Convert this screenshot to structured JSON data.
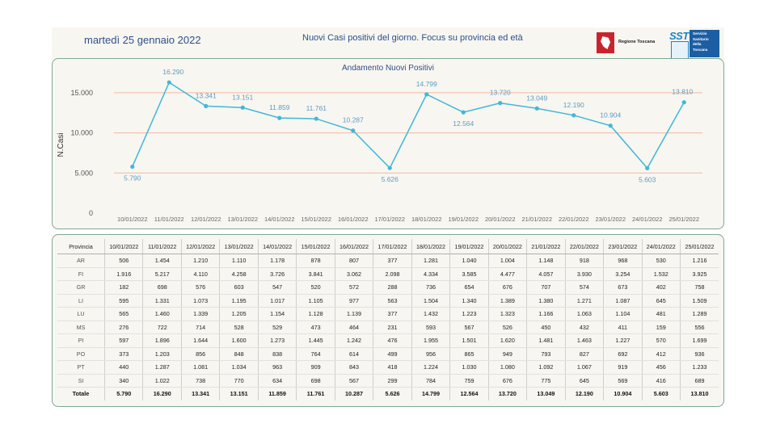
{
  "header": {
    "date": "martedì 25 gennaio 2022",
    "subtitle": "Nuovi Casi positivi del giorno. Focus su provincia ed età",
    "logo_rt_text": "Regione Toscana",
    "logo_sst_word": "SST",
    "logo_sst_lines": [
      "Servizio",
      "Sanitario",
      "della",
      "Toscana"
    ]
  },
  "colors": {
    "line": "#3fb8d9",
    "grid": "#f0b9a2",
    "label": "#5b9cc4",
    "text": "#2d4f8c"
  },
  "chart_data": {
    "type": "line",
    "title": "Andamento Nuovi Positivi",
    "xlabel": "",
    "ylabel": "N.Casi",
    "ylim": [
      0,
      17000
    ],
    "yticks": [
      "0",
      "5.000",
      "10.000",
      "15.000"
    ],
    "ytick_values": [
      0,
      5000,
      10000,
      15000
    ],
    "grid": true,
    "categories": [
      "10/01/2022",
      "11/01/2022",
      "12/01/2022",
      "13/01/2022",
      "14/01/2022",
      "15/01/2022",
      "16/01/2022",
      "17/01/2022",
      "18/01/2022",
      "19/01/2022",
      "20/01/2022",
      "21/01/2022",
      "22/01/2022",
      "23/01/2022",
      "24/01/2022",
      "25/01/2022"
    ],
    "values": [
      5790,
      16290,
      13341,
      13151,
      11859,
      11761,
      10287,
      5626,
      14799,
      12564,
      13720,
      13049,
      12190,
      10904,
      5603,
      13810
    ],
    "value_labels": [
      "5.790",
      "16.290",
      "13.341",
      "13.151",
      "11.859",
      "11.761",
      "10.287",
      "5.626",
      "14.799",
      "12.564",
      "13.720",
      "13.049",
      "12.190",
      "10.904",
      "5.603",
      "13.810"
    ]
  },
  "table": {
    "corner": "Provincia",
    "rows": [
      {
        "prov": "AR",
        "cells": [
          "506",
          "1.454",
          "1.210",
          "1.110",
          "1.178",
          "878",
          "807",
          "377",
          "1.281",
          "1.040",
          "1.004",
          "1.148",
          "918",
          "968",
          "530",
          "1.216"
        ]
      },
      {
        "prov": "FI",
        "cells": [
          "1.916",
          "5.217",
          "4.110",
          "4.258",
          "3.726",
          "3.841",
          "3.062",
          "2.098",
          "4.334",
          "3.585",
          "4.477",
          "4.057",
          "3.930",
          "3.254",
          "1.532",
          "3.925"
        ]
      },
      {
        "prov": "GR",
        "cells": [
          "182",
          "698",
          "576",
          "603",
          "547",
          "520",
          "572",
          "288",
          "736",
          "654",
          "676",
          "707",
          "574",
          "673",
          "402",
          "758"
        ]
      },
      {
        "prov": "LI",
        "cells": [
          "595",
          "1.331",
          "1.073",
          "1.195",
          "1.017",
          "1.105",
          "977",
          "563",
          "1.504",
          "1.340",
          "1.389",
          "1.380",
          "1.271",
          "1.087",
          "645",
          "1.509"
        ]
      },
      {
        "prov": "LU",
        "cells": [
          "565",
          "1.460",
          "1.339",
          "1.205",
          "1.154",
          "1.128",
          "1.139",
          "377",
          "1.432",
          "1.223",
          "1.323",
          "1.166",
          "1.063",
          "1.104",
          "481",
          "1.289"
        ]
      },
      {
        "prov": "MS",
        "cells": [
          "276",
          "722",
          "714",
          "528",
          "529",
          "473",
          "464",
          "231",
          "593",
          "567",
          "526",
          "450",
          "432",
          "411",
          "159",
          "556"
        ]
      },
      {
        "prov": "PI",
        "cells": [
          "597",
          "1.896",
          "1.644",
          "1.600",
          "1.273",
          "1.445",
          "1.242",
          "476",
          "1.955",
          "1.501",
          "1.620",
          "1.481",
          "1.463",
          "1.227",
          "570",
          "1.699"
        ]
      },
      {
        "prov": "PO",
        "cells": [
          "373",
          "1.203",
          "856",
          "848",
          "838",
          "764",
          "614",
          "499",
          "956",
          "865",
          "949",
          "793",
          "827",
          "692",
          "412",
          "936"
        ]
      },
      {
        "prov": "PT",
        "cells": [
          "440",
          "1.287",
          "1.081",
          "1.034",
          "963",
          "909",
          "843",
          "418",
          "1.224",
          "1.030",
          "1.080",
          "1.092",
          "1.067",
          "919",
          "456",
          "1.233"
        ]
      },
      {
        "prov": "SI",
        "cells": [
          "340",
          "1.022",
          "738",
          "770",
          "634",
          "698",
          "567",
          "299",
          "784",
          "759",
          "676",
          "775",
          "645",
          "569",
          "416",
          "689"
        ]
      }
    ],
    "total": {
      "prov": "Totale",
      "cells": [
        "5.790",
        "16.290",
        "13.341",
        "13.151",
        "11.859",
        "11.761",
        "10.287",
        "5.626",
        "14.799",
        "12.564",
        "13.720",
        "13.049",
        "12.190",
        "10.904",
        "5.603",
        "13.810"
      ]
    }
  }
}
